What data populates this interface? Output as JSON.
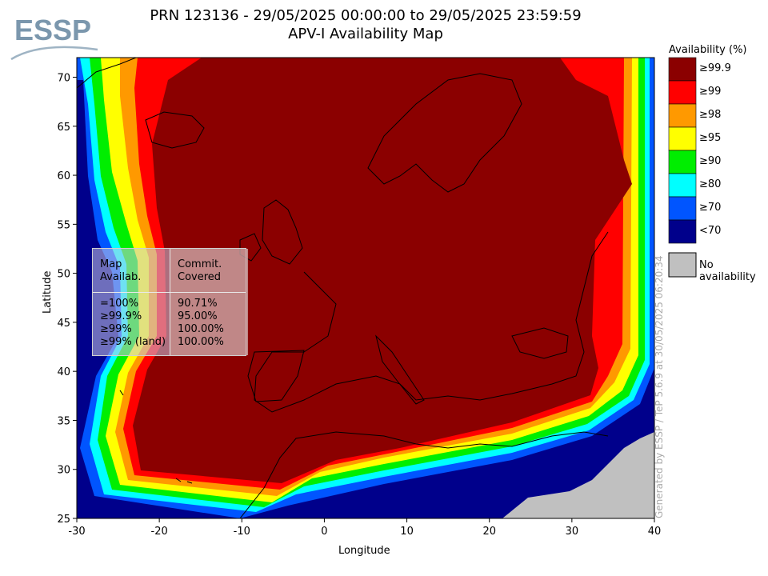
{
  "title": {
    "line1": "PRN 123136 - 29/05/2025 00:00:00 to 29/05/2025 23:59:59",
    "line2": "APV-I Availability Map"
  },
  "logo": {
    "text": "ESSP"
  },
  "axes": {
    "xlabel": "Longitude",
    "ylabel": "Latitude",
    "xlim": [
      -30,
      40
    ],
    "ylim": [
      25,
      72
    ],
    "xticks": [
      "-30",
      "-20",
      "-10",
      "0",
      "10",
      "20",
      "30",
      "40"
    ],
    "yticks": [
      "70",
      "65",
      "60",
      "55",
      "50",
      "45",
      "40",
      "35",
      "30",
      "25"
    ]
  },
  "legend": {
    "title": "Availability (%)",
    "items": [
      {
        "label": "≥99.9",
        "color": "#8b0000"
      },
      {
        "label": "≥99",
        "color": "#ff0000"
      },
      {
        "label": "≥98",
        "color": "#ff9900"
      },
      {
        "label": "≥95",
        "color": "#ffff00"
      },
      {
        "label": "≥90",
        "color": "#00ee00"
      },
      {
        "label": "≥80",
        "color": "#00ffff"
      },
      {
        "label": "≥70",
        "color": "#0055ff"
      },
      {
        "label": "<70",
        "color": "#00008b"
      }
    ],
    "no_availability": {
      "label": "No availability",
      "color": "#c0c0c0"
    }
  },
  "stats_box": {
    "col1_header": [
      "Map",
      "Availab."
    ],
    "col2_header": [
      "Commit.",
      "Covered"
    ],
    "rows": [
      {
        "label": "=100%",
        "value": "90.71%"
      },
      {
        "label": "≥99.9%",
        "value": "95.00%"
      },
      {
        "label": "≥99%",
        "value": "100.00%"
      },
      {
        "label": "≥99% (land)",
        "value": "100.00%"
      }
    ]
  },
  "generated_by": "Generated by ESSP / TeP 5.6.9 at 30/05/2025 06:20:34"
}
